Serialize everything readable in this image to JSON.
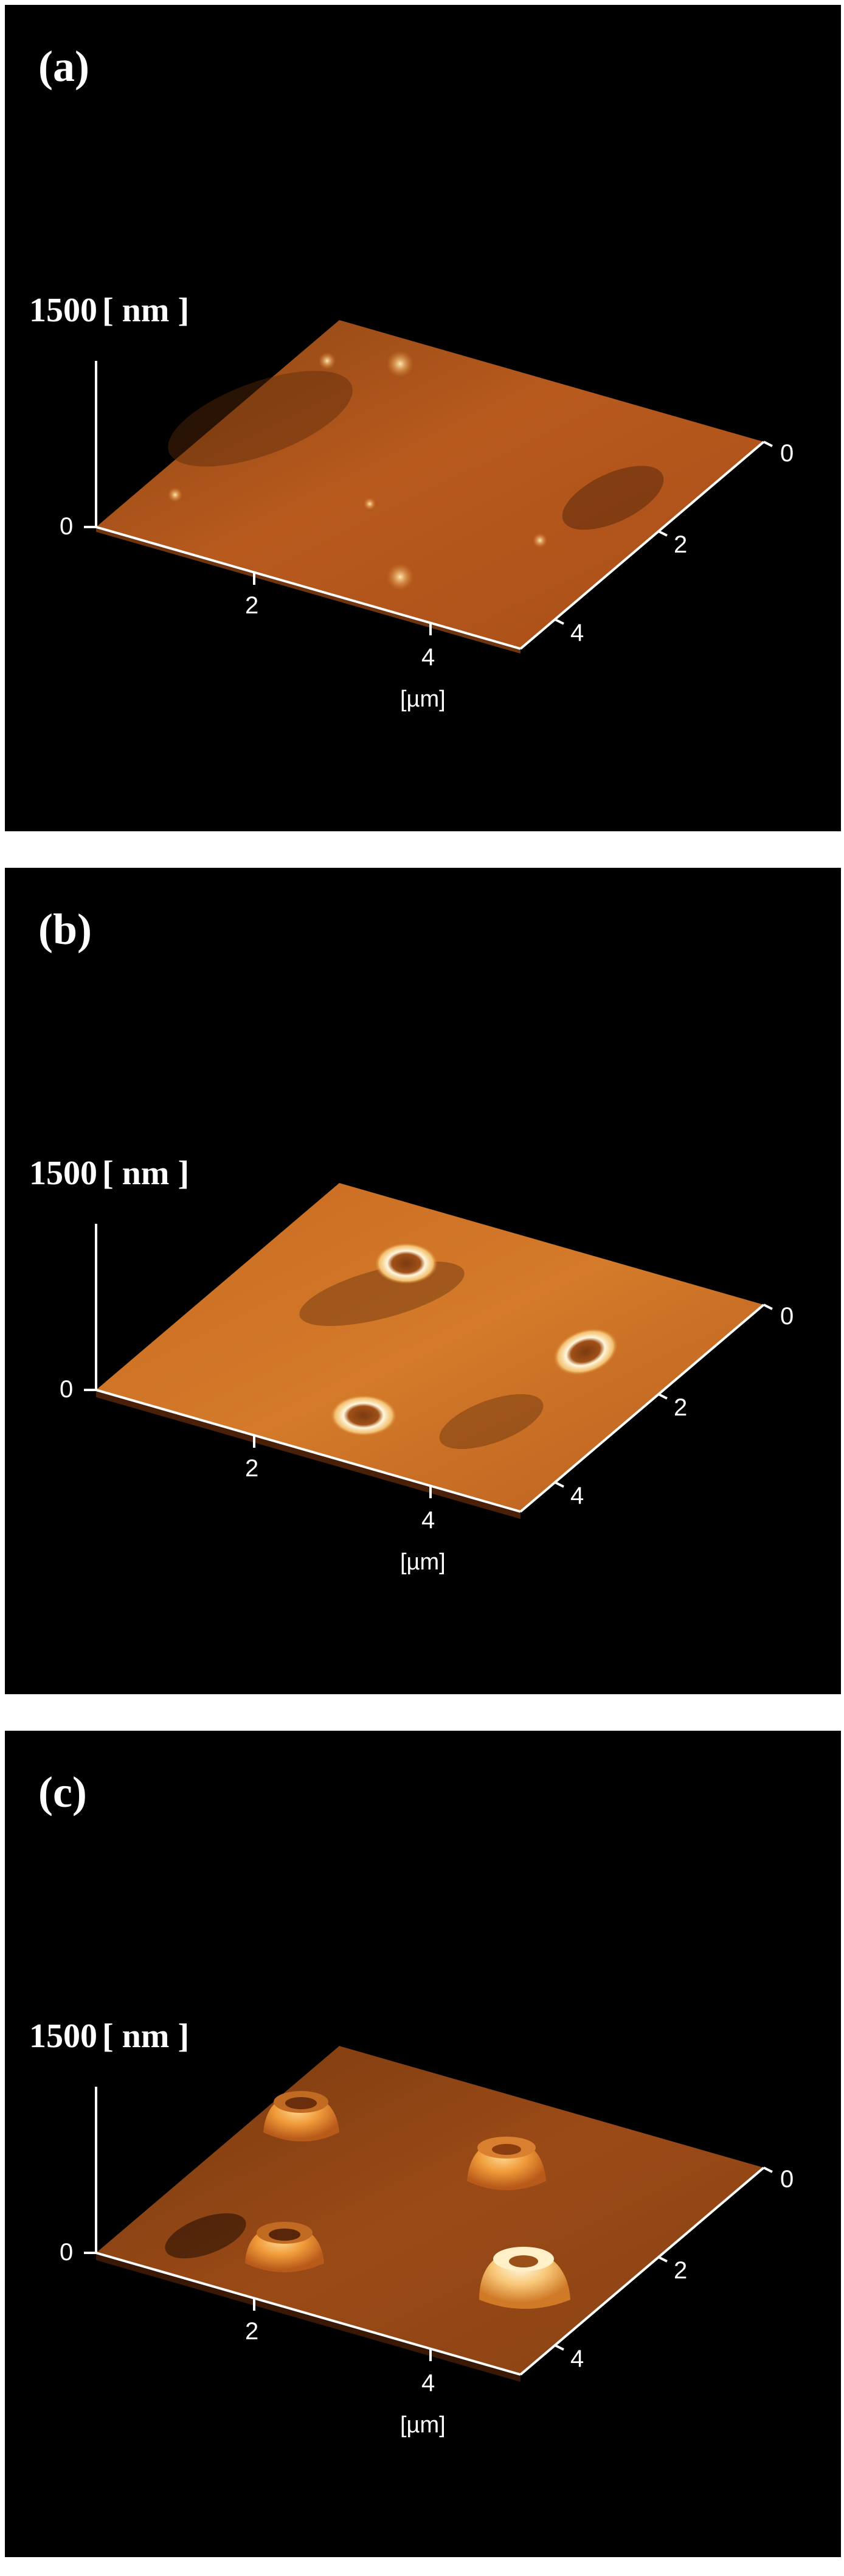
{
  "panels": [
    {
      "label": "(a)",
      "z_max": "1500",
      "z_unit": "[ nm ]",
      "z_zero": "0",
      "x_ticks": [
        "2",
        "4"
      ],
      "y_ticks": [
        "0",
        "2",
        "4"
      ],
      "xy_unit": "[µm]"
    },
    {
      "label": "(b)",
      "z_max": "1500",
      "z_unit": "[ nm ]",
      "z_zero": "0",
      "x_ticks": [
        "2",
        "4"
      ],
      "y_ticks": [
        "0",
        "2",
        "4"
      ],
      "xy_unit": "[µm]"
    },
    {
      "label": "(c)",
      "z_max": "1500",
      "z_unit": "[ nm ]",
      "z_zero": "0",
      "x_ticks": [
        "2",
        "4"
      ],
      "y_ticks": [
        "0",
        "2",
        "4"
      ],
      "xy_unit": "[µm]"
    }
  ],
  "colors": {
    "background": "#000000",
    "surface_dark": "#5a2a0a",
    "surface_mid": "#c8641e",
    "surface_light": "#f0a040",
    "highlight": "#fff4d0",
    "axis": "#ffffff"
  }
}
